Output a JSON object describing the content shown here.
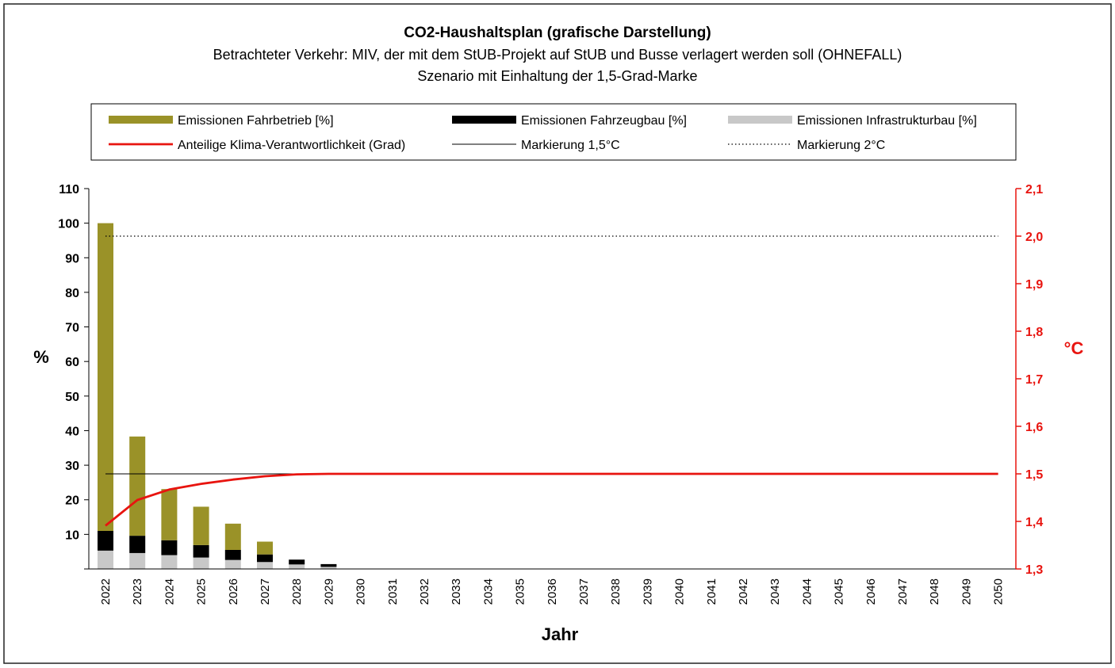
{
  "chart_data": {
    "type": "bar",
    "title": "CO2-Haushaltsplan (grafische Darstellung)",
    "subtitle_1": "Betrachteter Verkehr: MIV, der mit dem StUB-Projekt auf StUB und Busse verlagert werden soll (OHNEFALL)",
    "subtitle_2": "Szenario mit Einhaltung der 1,5-Grad-Marke",
    "xlabel": "Jahr",
    "ylabel": "%",
    "y2label": "°C",
    "ylim": [
      0,
      110
    ],
    "y_ticks": [
      "10",
      "20",
      "30",
      "40",
      "50",
      "60",
      "70",
      "80",
      "90",
      "100",
      "110"
    ],
    "y2lim": [
      1.3,
      2.1
    ],
    "y2_ticks": [
      "1,3",
      "1,4",
      "1,5",
      "1,6",
      "1,7",
      "1,8",
      "1,9",
      "2,0",
      "2,1"
    ],
    "categories": [
      "2022",
      "2023",
      "2024",
      "2025",
      "2026",
      "2027",
      "2028",
      "2029",
      "2030",
      "2031",
      "2032",
      "2033",
      "2034",
      "2035",
      "2036",
      "2037",
      "2038",
      "2039",
      "2040",
      "2041",
      "2042",
      "2043",
      "2044",
      "2045",
      "2046",
      "2047",
      "2048",
      "2049",
      "2050"
    ],
    "series": [
      {
        "name": "Emissionen Infrastrukturbau [%]",
        "color": "#c8c8c8",
        "values": [
          5.3,
          4.6,
          4.0,
          3.3,
          2.6,
          2.0,
          1.3,
          0.6,
          0,
          0,
          0,
          0,
          0,
          0,
          0,
          0,
          0,
          0,
          0,
          0,
          0,
          0,
          0,
          0,
          0,
          0,
          0,
          0,
          0
        ]
      },
      {
        "name": "Emissionen Fahrzeugbau [%]",
        "color": "#000000",
        "values": [
          5.7,
          5.0,
          4.3,
          3.6,
          2.9,
          2.2,
          1.4,
          0.8,
          0,
          0,
          0,
          0,
          0,
          0,
          0,
          0,
          0,
          0,
          0,
          0,
          0,
          0,
          0,
          0,
          0,
          0,
          0,
          0,
          0
        ]
      },
      {
        "name": "Emissionen Fahrbetrieb [%]",
        "color": "#9a9228",
        "values": [
          89.0,
          28.7,
          14.8,
          11.1,
          7.6,
          3.7,
          0,
          0,
          0,
          0,
          0,
          0,
          0,
          0,
          0,
          0,
          0,
          0,
          0,
          0,
          0,
          0,
          0,
          0,
          0,
          0,
          0,
          0,
          0
        ]
      }
    ],
    "line_series": {
      "name": "Anteilige Klima-Verantwortlichkeit (Grad)",
      "color": "#e8140f",
      "axis": "right",
      "values": [
        1.391,
        1.445,
        1.467,
        1.479,
        1.488,
        1.495,
        1.499,
        1.5,
        1.5,
        1.5,
        1.5,
        1.5,
        1.5,
        1.5,
        1.5,
        1.5,
        1.5,
        1.5,
        1.5,
        1.5,
        1.5,
        1.5,
        1.5,
        1.5,
        1.5,
        1.5,
        1.5,
        1.5,
        1.5
      ]
    },
    "reference_lines": [
      {
        "name": "Markierung 1,5°C",
        "value": 1.5,
        "style": "solid",
        "color": "#000000"
      },
      {
        "name": "Markierung 2°C",
        "value": 2.0,
        "style": "dotted",
        "color": "#000000"
      }
    ],
    "legend": [
      {
        "label": "Emissionen Fahrbetrieb [%]",
        "kind": "bar",
        "color": "#9a9228"
      },
      {
        "label": "Emissionen Fahrzeugbau [%]",
        "kind": "bar",
        "color": "#000000"
      },
      {
        "label": "Emissionen Infrastrukturbau [%]",
        "kind": "bar",
        "color": "#c8c8c8"
      },
      {
        "label": "Anteilige Klima-Verantwortlichkeit (Grad)",
        "kind": "redline",
        "color": "#e8140f"
      },
      {
        "label": "Markierung 1,5°C",
        "kind": "solid",
        "color": "#000000"
      },
      {
        "label": "Markierung 2°C",
        "kind": "dotted",
        "color": "#000000"
      }
    ],
    "legend_position": "top",
    "grid": false
  }
}
